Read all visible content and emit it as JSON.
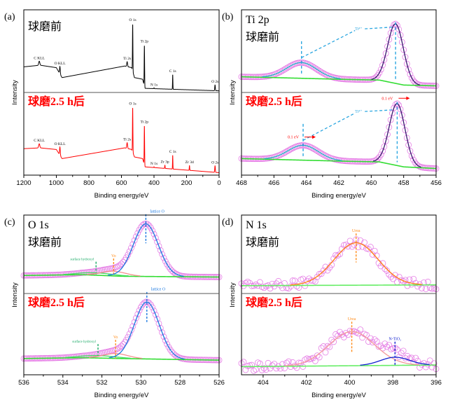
{
  "chart_data": [
    {
      "panel_label": "(a)",
      "type": "line",
      "title": "",
      "xlabel": "Binding energy/eV",
      "ylabel": "Intensity",
      "xlim": [
        1200,
        0
      ],
      "xticks": [
        1200,
        1000,
        800,
        600,
        400,
        200,
        0
      ],
      "style": "survey",
      "subplots": [
        {
          "label": "球磨前",
          "label_color": "#000000",
          "line_color": "#000000",
          "background": [
            [
              1200,
              0.31
            ],
            [
              1100,
              0.33
            ],
            [
              1000,
              0.3
            ],
            [
              965,
              0.18
            ],
            [
              580,
              0.32
            ],
            [
              537,
              0.3
            ],
            [
              520,
              0.18
            ],
            [
              470,
              0.16
            ],
            [
              455,
              0.05
            ],
            [
              0,
              0.02
            ]
          ],
          "peaks": [
            {
              "name": "C KLL",
              "x": 1105,
              "amp": 0.05,
              "fwhm": 8
            },
            {
              "name": "O KLL",
              "x": 978,
              "amp": 0.09,
              "fwhm": 5
            },
            {
              "name": "Ti 2s",
              "x": 565,
              "amp": 0.06,
              "fwhm": 6
            },
            {
              "name": "O 1s",
              "x": 531,
              "amp": 0.58,
              "fwhm": 3
            },
            {
              "name": "Ti 2p",
              "x": 459,
              "amp": 0.5,
              "fwhm": 3
            },
            {
              "name": "N 1s",
              "x": 400,
              "amp": 0.01,
              "fwhm": 3
            },
            {
              "name": "C 1s",
              "x": 285,
              "amp": 0.18,
              "fwhm": 2.5
            },
            {
              "name": "O 2s",
              "x": 25,
              "amp": 0.07,
              "fwhm": 4
            }
          ],
          "labels": [
            "C KLL",
            "O KLL",
            "Ti 2s",
            "O 1s",
            "Ti 2p",
            "N 1s",
            "C 1s",
            "O 2s"
          ]
        },
        {
          "label": "球磨2.5 h后",
          "label_color": "#ff0000",
          "line_color": "#ff0000",
          "background": [
            [
              1200,
              0.32
            ],
            [
              1100,
              0.33
            ],
            [
              1000,
              0.31
            ],
            [
              965,
              0.2
            ],
            [
              580,
              0.33
            ],
            [
              537,
              0.31
            ],
            [
              520,
              0.22
            ],
            [
              470,
              0.2
            ],
            [
              455,
              0.1
            ],
            [
              0,
              0.03
            ]
          ],
          "peaks": [
            {
              "name": "C KLL",
              "x": 1105,
              "amp": 0.05,
              "fwhm": 8
            },
            {
              "name": "O KLL",
              "x": 978,
              "amp": 0.1,
              "fwhm": 5
            },
            {
              "name": "Ti 2s",
              "x": 565,
              "amp": 0.07,
              "fwhm": 6
            },
            {
              "name": "O 1s",
              "x": 531,
              "amp": 0.55,
              "fwhm": 3
            },
            {
              "name": "Ti 2p",
              "x": 459,
              "amp": 0.48,
              "fwhm": 3
            },
            {
              "name": "N 1s",
              "x": 400,
              "amp": 0.01,
              "fwhm": 3
            },
            {
              "name": "Zr 3p",
              "x": 333,
              "amp": 0.04,
              "fwhm": 3
            },
            {
              "name": "C 1s",
              "x": 285,
              "amp": 0.17,
              "fwhm": 2.5
            },
            {
              "name": "Zr 3d",
              "x": 182,
              "amp": 0.06,
              "fwhm": 3
            },
            {
              "name": "O 2s",
              "x": 25,
              "amp": 0.08,
              "fwhm": 4
            }
          ],
          "labels": [
            "C KLL",
            "O KLL",
            "Ti 2s",
            "O 1s",
            "Ti 2p",
            "N 1s",
            "Zr 3p",
            "C 1s",
            "Zr 3d",
            "O 2s"
          ]
        }
      ]
    },
    {
      "panel_label": "(b)",
      "type": "scatter",
      "title": "Ti 2p",
      "xlabel": "Binding energy/eV",
      "ylabel": "Intensity",
      "xlim": [
        468,
        456
      ],
      "xticks": [
        468,
        466,
        464,
        462,
        460,
        458,
        456
      ],
      "style": "fit",
      "marker_color": "#e57ee5",
      "background_color": "#33dd33",
      "subplots": [
        {
          "label": "球磨前",
          "label_color": "#000000",
          "background": [
            [
              468,
              0.19
            ],
            [
              462,
              0.16
            ],
            [
              459.5,
              0.15
            ],
            [
              458,
              0.09
            ],
            [
              456,
              0.08
            ]
          ],
          "peaks": [
            {
              "name": "Ti 2p1/2",
              "x": 464.3,
              "amp": 0.19,
              "fwhm": 2.2,
              "color": "#1fb2c8"
            },
            {
              "name": "Ti 2p3/2",
              "x": 458.5,
              "amp": 0.72,
              "fwhm": 1.15,
              "color": "#3a1670"
            }
          ],
          "link": {
            "text": "Ti⁴⁺",
            "color": "#2aa6e0",
            "x": 461
          },
          "shift_notes": []
        },
        {
          "label": "球磨2.5 h后",
          "label_color": "#ff0000",
          "background": [
            [
              468,
              0.2
            ],
            [
              462,
              0.17
            ],
            [
              459.5,
              0.16
            ],
            [
              458,
              0.1
            ],
            [
              456,
              0.08
            ]
          ],
          "peaks": [
            {
              "name": "Ti 2p1/2",
              "x": 464.2,
              "amp": 0.18,
              "fwhm": 2.2,
              "color": "#1fb2c8"
            },
            {
              "name": "Ti 2p3/2",
              "x": 458.4,
              "amp": 0.75,
              "fwhm": 1.15,
              "color": "#3a1670"
            }
          ],
          "link": {
            "text": "Ti⁴⁺",
            "color": "#2aa6e0",
            "x": 461
          },
          "shift_notes": [
            {
              "text": "0.1 eV",
              "x": 464.2,
              "color": "#ff0000",
              "direction": "right"
            },
            {
              "text": "0.1 eV",
              "x": 458.4,
              "color": "#ff0000",
              "direction": "right"
            }
          ]
        }
      ]
    },
    {
      "panel_label": "(c)",
      "type": "scatter",
      "title": "O 1s",
      "xlabel": "Binding energy/eV",
      "ylabel": "Intensity",
      "xlim": [
        536,
        526
      ],
      "xticks": [
        536,
        534,
        532,
        530,
        528,
        526
      ],
      "style": "fit",
      "marker_color": "#e57ee5",
      "background_color": "#33dd33",
      "subplots": [
        {
          "label": "球磨前",
          "label_color": "#000000",
          "background": [
            [
              536,
              0.23
            ],
            [
              533,
              0.24
            ],
            [
              531,
              0.22
            ],
            [
              526,
              0.21
            ]
          ],
          "peaks": [
            {
              "name": "surface hydroxyl",
              "x": 532.3,
              "amp": 0.03,
              "fwhm": 2.2,
              "color": "#44dd66",
              "marker_color": "#1aaa66"
            },
            {
              "name": "Vo",
              "x": 531.4,
              "amp": 0.06,
              "fwhm": 1.5,
              "color": "#f59090",
              "marker_color": "#ff8c1a"
            },
            {
              "name": "lattice O",
              "x": 529.75,
              "amp": 0.67,
              "fwhm": 1.5,
              "color": "#1a78e0",
              "marker_color": "#1a78e0"
            }
          ]
        },
        {
          "label": "球磨2.5 h后",
          "label_color": "#ff0000",
          "background": [
            [
              536,
              0.2
            ],
            [
              533,
              0.21
            ],
            [
              531,
              0.2
            ],
            [
              526,
              0.18
            ]
          ],
          "peaks": [
            {
              "name": "surface hydroxyl",
              "x": 532.2,
              "amp": 0.03,
              "fwhm": 2.2,
              "color": "#44dd66",
              "marker_color": "#1aaa66"
            },
            {
              "name": "Vo",
              "x": 531.3,
              "amp": 0.06,
              "fwhm": 1.5,
              "color": "#f59090",
              "marker_color": "#ff8c1a"
            },
            {
              "name": "lattice O",
              "x": 529.7,
              "amp": 0.7,
              "fwhm": 1.5,
              "color": "#1a78e0",
              "marker_color": "#1a78e0"
            }
          ]
        }
      ]
    },
    {
      "panel_label": "(d)",
      "type": "scatter",
      "title": "N 1s",
      "xlabel": "Binding energy/eV",
      "ylabel": "Intensity",
      "xlim": [
        405,
        396
      ],
      "xticks": [
        404,
        402,
        400,
        398,
        396
      ],
      "style": "fit",
      "noisy": true,
      "marker_color": "#e57ee5",
      "background_color": "#66ee66",
      "subplots": [
        {
          "label": "球磨前",
          "label_color": "#000000",
          "background": [
            [
              405,
              0.1
            ],
            [
              396,
              0.11
            ]
          ],
          "peaks": [
            {
              "name": "Urea",
              "x": 399.7,
              "amp": 0.54,
              "fwhm": 2.4,
              "color": "#ff7f0e",
              "marker_color": "#ff8c1a"
            }
          ]
        },
        {
          "label": "球磨2.5 h后",
          "label_color": "#ff0000",
          "background": [
            [
              405,
              0.1
            ],
            [
              396,
              0.12
            ]
          ],
          "peaks": [
            {
              "name": "Urea",
              "x": 399.9,
              "amp": 0.42,
              "fwhm": 2.5,
              "color": "#f49a9a",
              "marker_color": "#ff8c1a"
            },
            {
              "name": "N-TiO₂",
              "x": 397.9,
              "amp": 0.1,
              "fwhm": 1.6,
              "color": "#1020d0",
              "marker_color": "#1020d0"
            }
          ]
        }
      ]
    }
  ]
}
